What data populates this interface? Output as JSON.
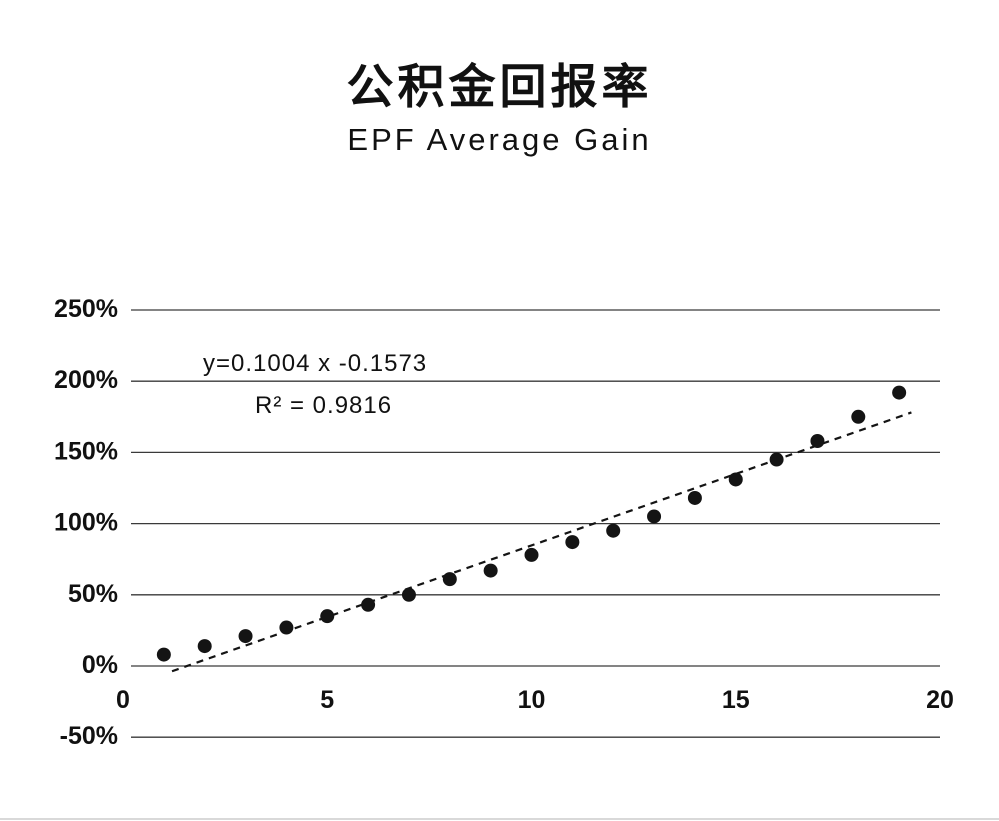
{
  "title": "公积金回报率",
  "subtitle": "EPF Average Gain",
  "annotations": {
    "equation": "y=0.1004 x -0.1573",
    "r_squared": "R² = 0.9816"
  },
  "chart_data": {
    "type": "scatter",
    "title": "公积金回报率",
    "subtitle": "EPF Average Gain",
    "xlabel": "",
    "ylabel": "",
    "xlim": [
      0,
      20
    ],
    "ylim": [
      -50,
      250
    ],
    "x_tick_values": [
      0,
      5,
      10,
      15,
      20
    ],
    "x_tick_labels": [
      "0",
      "5",
      "10",
      "15",
      "20"
    ],
    "y_tick_values": [
      250,
      200,
      150,
      100,
      50,
      0,
      -50
    ],
    "y_tick_labels": [
      "250%",
      "200%",
      "150%",
      "100%",
      "50%",
      "0%",
      "-50%"
    ],
    "grid": "horizontal",
    "x": [
      1,
      2,
      3,
      4,
      5,
      6,
      7,
      8,
      9,
      10,
      11,
      12,
      13,
      14,
      15,
      16,
      17,
      18,
      19
    ],
    "y_percent": [
      8,
      14,
      21,
      27,
      35,
      43,
      50,
      61,
      67,
      78,
      87,
      95,
      105,
      118,
      131,
      145,
      158,
      175,
      192
    ],
    "trendline": {
      "style": "dashed",
      "slope": 0.1004,
      "intercept": -0.1573,
      "equation": "y=0.1004 x -0.1573",
      "r_squared_label": "R² = 0.9816",
      "x_start": 1.2,
      "x_end": 19.3
    },
    "point_color": "#141414",
    "line_color": "#141414",
    "grid_color": "#3a3a3a",
    "legend": "none"
  }
}
